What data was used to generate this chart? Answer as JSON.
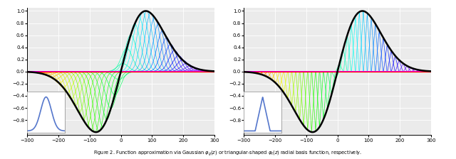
{
  "xlim": [
    -300,
    300
  ],
  "ylim": [
    -1.0,
    1.0
  ],
  "yticks": [
    -0.8,
    -0.6,
    -0.4,
    -0.2,
    0,
    0.2,
    0.4,
    0.6,
    0.8,
    1.0
  ],
  "xticks": [
    -300,
    -200,
    -100,
    0,
    100,
    200,
    300
  ],
  "n_basis": 48,
  "sigma_gaussian": 18,
  "sigma_triangular": 12,
  "envelope_sigma": 80,
  "background": "#ebebeb",
  "inset_color": "#5577cc",
  "caption": "Figure 2. Function approximation via Gaussian $\\varphi_g(z)$ or triangular-shaped $\\varphi_t(z)$ radial basis function, respectively."
}
